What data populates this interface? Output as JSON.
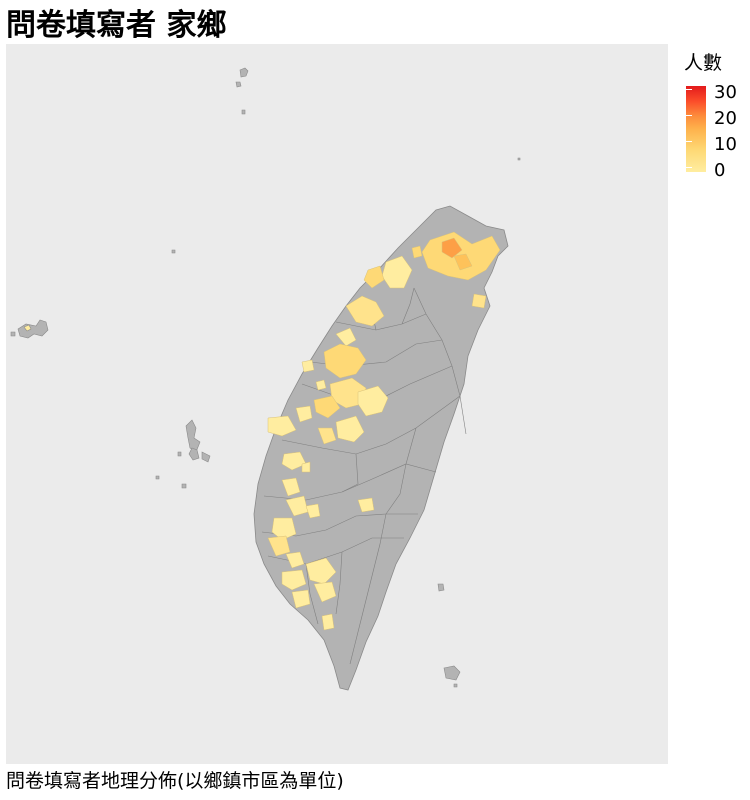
{
  "title": "問卷填寫者 家鄉",
  "caption": "問卷填寫者地理分佈(以鄉鎮市區為單位)",
  "legend": {
    "title": "人數",
    "labels": [
      "30",
      "20",
      "10",
      "0"
    ],
    "values": [
      30,
      20,
      10,
      0
    ],
    "colors": {
      "low": "#ffeda0",
      "mid": "#feb24c",
      "high": "#e31a1c"
    }
  },
  "map": {
    "background_color": "#ebebeb",
    "land_color": "#b3b3b3",
    "border_color": "#7a7a7a"
  }
}
